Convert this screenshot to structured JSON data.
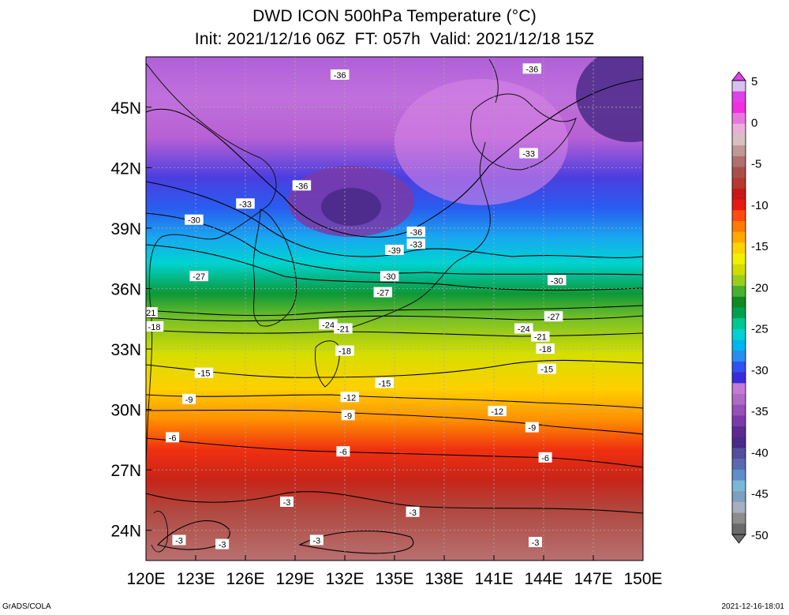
{
  "title_line1": "DWD ICON 500hPa Temperature (°C)",
  "title_line2": "Init: 2021/12/16 06Z  FT: 057h  Valid: 2021/12/18 15Z",
  "footer_left": "GrADS/COLA",
  "footer_right": "2021-12-16-18:01",
  "axes": {
    "lon_labels": [
      "120E",
      "123E",
      "126E",
      "129E",
      "132E",
      "135E",
      "138E",
      "141E",
      "144E",
      "147E",
      "150E"
    ],
    "lat_labels": [
      "24N",
      "27N",
      "30N",
      "33N",
      "36N",
      "39N",
      "42N",
      "45N"
    ],
    "lon_range": [
      120,
      150
    ],
    "lat_range": [
      22.5,
      47.5
    ]
  },
  "colorbar": {
    "labels": [
      "5",
      "0",
      "-5",
      "-10",
      "-15",
      "-20",
      "-25",
      "-30",
      "-35",
      "-40",
      "-45",
      "-50"
    ],
    "colors": [
      "#6a6a6a",
      "#8c8c8c",
      "#a6aec0",
      "#7f9fbf",
      "#7ab8d8",
      "#5f8fc8",
      "#5a6ab0",
      "#544d9e",
      "#4a2a88",
      "#5c2a90",
      "#7a3aa8",
      "#9650b8",
      "#b06ac6",
      "#c67ad6",
      "#3a2ad8",
      "#3050f0",
      "#2a8cf0",
      "#00b4f0",
      "#00d2d0",
      "#00c890",
      "#00a050",
      "#108a20",
      "#48b030",
      "#9acd20",
      "#d2dc00",
      "#f0f000",
      "#ffd200",
      "#ffa800",
      "#ff7a00",
      "#ff4a10",
      "#e81a10",
      "#c81818",
      "#b43a30",
      "#a85048",
      "#b07070",
      "#c09898",
      "#d8c0c0",
      "#e8b0d8",
      "#e878e0",
      "#f030e0",
      "#e040e8",
      "#d8c0f0"
    ]
  },
  "contour_labels": [
    {
      "text": "-36",
      "lon": 129.4,
      "lat": 41.1
    },
    {
      "text": "-36",
      "lon": 131.7,
      "lat": 46.6
    },
    {
      "text": "-36",
      "lon": 143.3,
      "lat": 46.9
    },
    {
      "text": "-36",
      "lon": 136.3,
      "lat": 38.8
    },
    {
      "text": "-33",
      "lon": 126.0,
      "lat": 40.2
    },
    {
      "text": "-33",
      "lon": 143.1,
      "lat": 42.7
    },
    {
      "text": "-33",
      "lon": 136.3,
      "lat": 38.2
    },
    {
      "text": "-39",
      "lon": 135.0,
      "lat": 37.9
    },
    {
      "text": "-30",
      "lon": 122.9,
      "lat": 39.4
    },
    {
      "text": "-30",
      "lon": 134.7,
      "lat": 36.6
    },
    {
      "text": "-30",
      "lon": 144.8,
      "lat": 36.4
    },
    {
      "text": "-27",
      "lon": 123.2,
      "lat": 36.6
    },
    {
      "text": "-27",
      "lon": 134.3,
      "lat": 35.8
    },
    {
      "text": "-27",
      "lon": 144.6,
      "lat": 34.6
    },
    {
      "text": "-24",
      "lon": 131.0,
      "lat": 34.2
    },
    {
      "text": "-24",
      "lon": 142.8,
      "lat": 34.0
    },
    {
      "text": "-21",
      "lon": 131.9,
      "lat": 34.0
    },
    {
      "text": "-21",
      "lon": 143.8,
      "lat": 33.6
    },
    {
      "text": "-18",
      "lon": 132.0,
      "lat": 32.9
    },
    {
      "text": "-18",
      "lon": 144.1,
      "lat": 33.0
    },
    {
      "text": "-15",
      "lon": 123.5,
      "lat": 31.8
    },
    {
      "text": "-15",
      "lon": 134.4,
      "lat": 31.3
    },
    {
      "text": "-15",
      "lon": 144.2,
      "lat": 32.0
    },
    {
      "text": "-12",
      "lon": 132.3,
      "lat": 30.6
    },
    {
      "text": "-12",
      "lon": 141.2,
      "lat": 29.9
    },
    {
      "text": "-9",
      "lon": 122.6,
      "lat": 30.5
    },
    {
      "text": "-9",
      "lon": 132.2,
      "lat": 29.7
    },
    {
      "text": "-9",
      "lon": 143.3,
      "lat": 29.1
    },
    {
      "text": "-6",
      "lon": 121.6,
      "lat": 28.6
    },
    {
      "text": "-6",
      "lon": 131.9,
      "lat": 27.9
    },
    {
      "text": "-6",
      "lon": 144.1,
      "lat": 27.6
    },
    {
      "text": "-3",
      "lon": 128.5,
      "lat": 25.4
    },
    {
      "text": "-3",
      "lon": 136.1,
      "lat": 24.9
    },
    {
      "text": "-3",
      "lon": 122.0,
      "lat": 23.5
    },
    {
      "text": "-3",
      "lon": 124.6,
      "lat": 23.3
    },
    {
      "text": "-3",
      "lon": 130.3,
      "lat": 23.5
    },
    {
      "text": "-3",
      "lon": 143.5,
      "lat": 23.4
    },
    {
      "text": "21",
      "lon": 120.3,
      "lat": 34.8
    },
    {
      "text": "-18",
      "lon": 120.5,
      "lat": 34.1
    }
  ]
}
